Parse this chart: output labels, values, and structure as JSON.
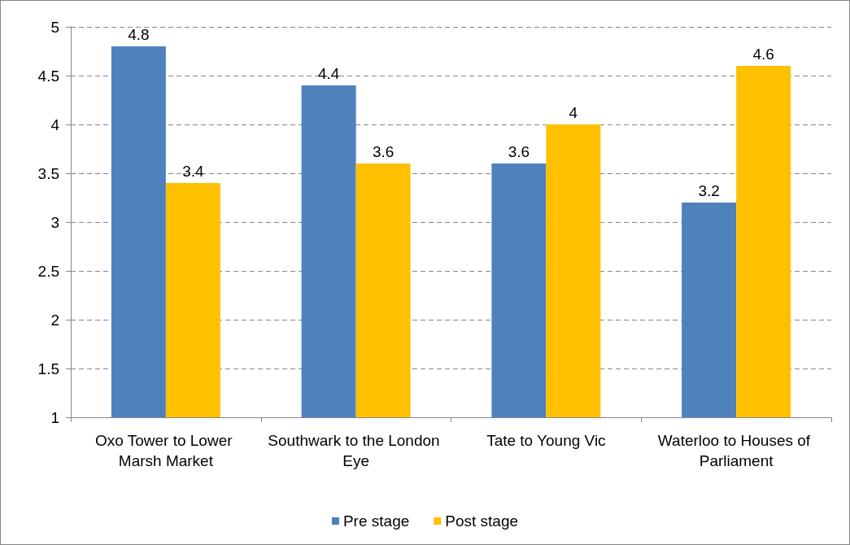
{
  "chart_data": {
    "type": "bar",
    "categories": [
      "Oxo Tower to Lower Marsh Market",
      "Southwark to the London Eye",
      "Tate to Young Vic",
      "Waterloo to Houses of Parliament"
    ],
    "series": [
      {
        "name": "Pre stage",
        "color": "#4f81bd",
        "values": [
          4.8,
          4.4,
          3.6,
          3.2
        ]
      },
      {
        "name": "Post stage",
        "color": "#ffc000",
        "values": [
          3.4,
          3.6,
          4,
          4.6
        ]
      }
    ],
    "ylim": [
      1,
      5
    ],
    "yticks": [
      1,
      1.5,
      2,
      2.5,
      3,
      3.5,
      4,
      4.5,
      5
    ],
    "grid": "y",
    "legend": "bottom",
    "data_labels": true
  }
}
